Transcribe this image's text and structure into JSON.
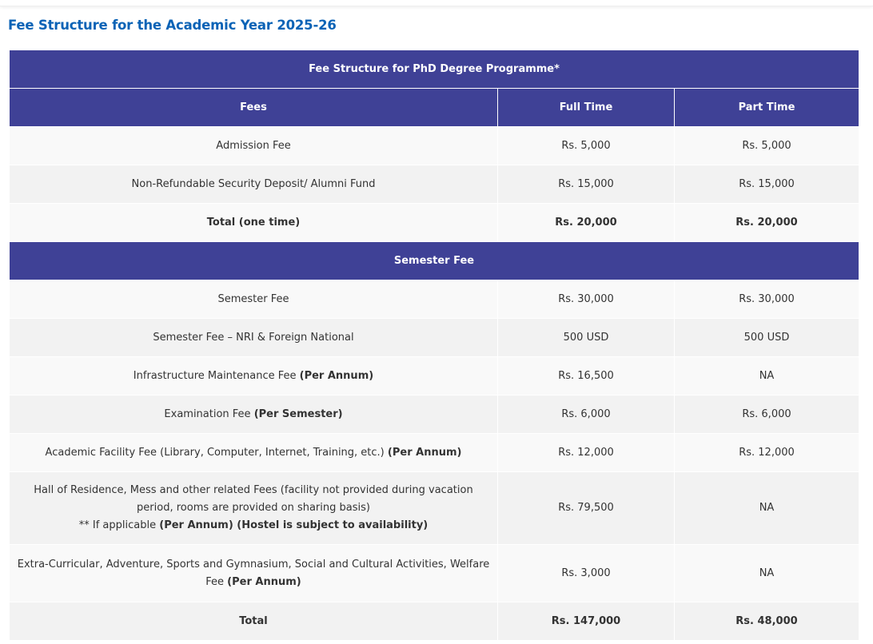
{
  "heading": "Fee Structure for the Academic Year 2025-26",
  "table": {
    "title": "Fee Structure for PhD Degree Programme*",
    "columns": [
      "Fees",
      "Full Time",
      "Part Time"
    ],
    "one_time_rows": [
      {
        "label": "Admission Fee",
        "full": "Rs. 5,000",
        "part": "Rs. 5,000"
      },
      {
        "label": "Non-Refundable Security Deposit/ Alumni Fund",
        "full": "Rs. 15,000",
        "part": "Rs. 15,000"
      },
      {
        "label": "",
        "bold": "Total (one time)",
        "full": "Rs. 20,000",
        "part": "Rs. 20,000",
        "total": true
      }
    ],
    "section_title": "Semester Fee",
    "semester_rows": [
      {
        "label": "Semester Fee",
        "full": "Rs. 30,000",
        "part": "Rs. 30,000"
      },
      {
        "label": "Semester Fee – NRI & Foreign National",
        "full": "500 USD",
        "part": "500 USD"
      },
      {
        "label": "Infrastructure Maintenance Fee",
        "bold": "(Per Annum)",
        "full": "Rs. 16,500",
        "part": "NA"
      },
      {
        "label": "Examination Fee",
        "bold": "(Per Semester)",
        "full": "Rs. 6,000",
        "part": "Rs. 6,000"
      },
      {
        "label": "Academic Facility Fee (Library, Computer, Internet, Training, etc.)",
        "bold": "(Per Annum)",
        "full": "Rs. 12,000",
        "part": "Rs. 12,000"
      },
      {
        "label": "Hall of Residence, Mess and other related Fees (facility not provided during vacation period, rooms are provided on sharing basis)",
        "note": "** If applicable",
        "note_bold": "(Per Annum) (Hostel is subject to availability)",
        "full": "Rs. 79,500",
        "part": "NA"
      },
      {
        "label": "Extra-Curricular, Adventure, Sports and Gymnasium, Social and Cultural Activities, Welfare Fee",
        "bold": "(Per Annum)",
        "full": "Rs. 3,000",
        "part": "NA"
      },
      {
        "label": "",
        "bold": "Total",
        "full": "Rs. 147,000",
        "part": "Rs. 48,000",
        "total": true
      }
    ]
  },
  "colors": {
    "header_bg": "#3f4196",
    "heading": "#0b63b6"
  }
}
